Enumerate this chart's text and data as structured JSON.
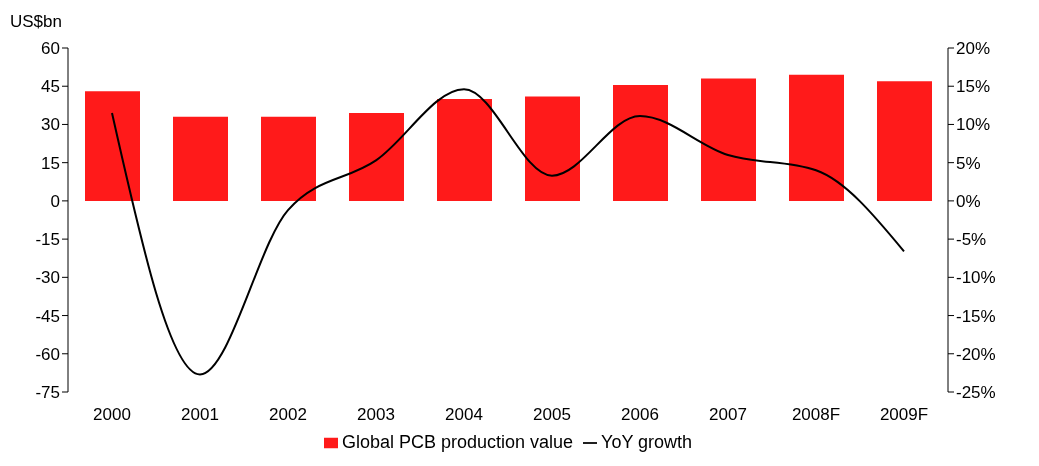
{
  "chart_data": {
    "type": "bar",
    "ylabel": "US$bn",
    "categories": [
      "2000",
      "2001",
      "2002",
      "2003",
      "2004",
      "2005",
      "2006",
      "2007",
      "2008F",
      "2009F"
    ],
    "series": [
      {
        "name": "Global PCB production value",
        "color": "#ff1a1a",
        "values": [
          43,
          33,
          33,
          34.5,
          40,
          41,
          45.5,
          48,
          49.5,
          47
        ]
      },
      {
        "name": "YoY growth",
        "type": "line",
        "axis": "y2",
        "color": "#000000",
        "values": [
          11.5,
          -22.7,
          -1.2,
          5.3,
          14.6,
          3.3,
          11.1,
          6,
          4,
          -6.6
        ]
      }
    ],
    "ylim": [
      -75,
      60
    ],
    "yticks": [
      -75,
      -60,
      -45,
      -30,
      -15,
      0,
      15,
      30,
      45,
      60
    ],
    "y2lim": [
      -25,
      20
    ],
    "y2ticks": [
      {
        "value": -25,
        "label": "-25%"
      },
      {
        "value": -20,
        "label": "-20%"
      },
      {
        "value": -15,
        "label": "-15%"
      },
      {
        "value": -10,
        "label": "-10%"
      },
      {
        "value": -5,
        "label": "-5%"
      },
      {
        "value": 0,
        "label": "0%"
      },
      {
        "value": 5,
        "label": "5%"
      },
      {
        "value": 10,
        "label": "10%"
      },
      {
        "value": 15,
        "label": "15%"
      },
      {
        "value": 20,
        "label": "20%"
      }
    ],
    "grid": false,
    "legend": "bottom",
    "marker": "none",
    "line_style": "solid"
  }
}
